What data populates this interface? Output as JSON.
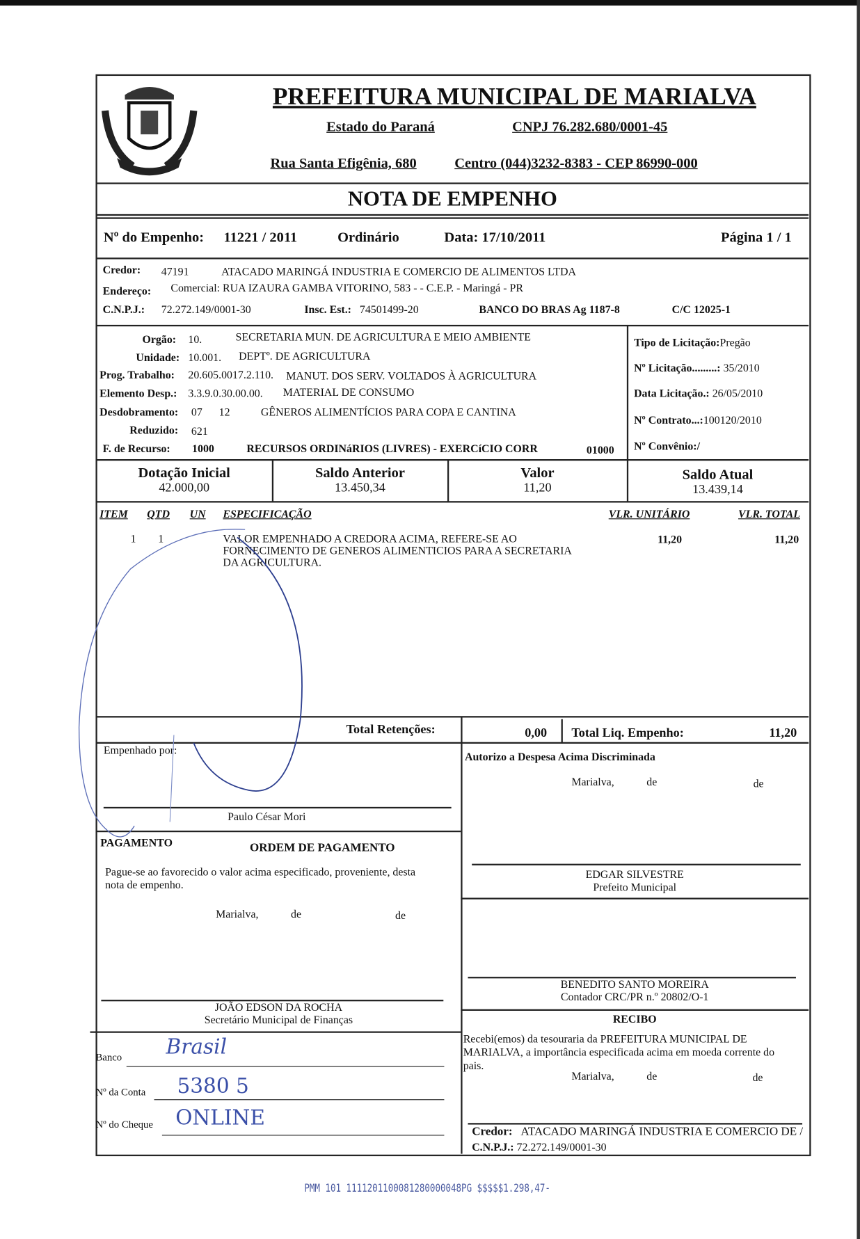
{
  "header": {
    "title": "PREFEITURA MUNICIPAL DE MARIALVA",
    "state": "Estado do Paraná",
    "cnpj": "CNPJ 76.282.680/0001-45",
    "address": "Rua Santa Efigênia, 680",
    "contact": "Centro  (044)3232-8383  -  CEP 86990-000",
    "doc_title": "NOTA  DE  EMPENHO"
  },
  "empenho": {
    "number_label": "Nº do Empenho:",
    "number": "11221 / 2011",
    "type": "Ordinário",
    "date": "Data: 17/10/2011",
    "page": "Página  1 / 1"
  },
  "credor": {
    "label": "Credor:",
    "code": "47191",
    "name": "ATACADO MARINGÁ INDUSTRIA E COMERCIO DE ALIMENTOS LTDA",
    "address_label": "Endereço:",
    "address": "Comercial: RUA IZAURA GAMBA VITORINO, 583 -  - C.E.P.  - Maringá  - PR",
    "cnpj_label": "C.N.P.J.:",
    "cnpj": "72.272.149/0001-30",
    "insc_label": "Insc. Est.:",
    "insc": "74501499-20",
    "bank": "BANCO DO BRAS  Ag   1187-8",
    "cc": "C/C    12025-1"
  },
  "budget": {
    "orgao_label": "Orgão:",
    "orgao_code": "10.",
    "orgao": "SECRETARIA MUN. DE AGRICULTURA E MEIO AMBIENTE",
    "unidade_label": "Unidade:",
    "unidade_code": "10.001.",
    "unidade": "DEPTº. DE AGRICULTURA",
    "prog_label": "Prog. Trabalho:",
    "prog_code": "20.605.0017.2.110.",
    "prog": "MANUT. DOS SERV. VOLTADOS À AGRICULTURA",
    "elem_label": "Elemento Desp.:",
    "elem_code": "3.3.9.0.30.00.00.",
    "elem": "MATERIAL DE CONSUMO",
    "desd_label": "Desdobramento:",
    "desd_code": "07      12",
    "desd": "GÊNEROS ALIMENTÍCIOS PARA COPA E CANTINA",
    "reduzido_label": "Reduzido:",
    "reduzido": "621",
    "recurso_label": "F. de Recurso:",
    "recurso_code": "1000",
    "recurso": "RECURSOS ORDINáRIOS (LIVRES) - EXERCíCIO CORR",
    "recurso_num": "01000"
  },
  "licitacao": {
    "tipo_label": "Tipo de Licitação:",
    "tipo": "Pregão",
    "num_label": "Nº Licitação.........:",
    "num": " 35/2010",
    "data_label": "Data Licitação.:",
    "data": " 26/05/2010",
    "contrato_label": "Nº Contrato...:",
    "contrato": "100120/2010",
    "convenio_label": "Nº Convênio:/"
  },
  "balances": [
    {
      "label": "Dotação Inicial",
      "value": "42.000,00"
    },
    {
      "label": "Saldo Anterior",
      "value": "13.450,34"
    },
    {
      "label": "Valor",
      "value": "11,20"
    },
    {
      "label": "Saldo Atual",
      "value": "13.439,14"
    }
  ],
  "items": {
    "headers": [
      "ITEM",
      "QTD",
      "UN",
      "ESPECIFICAÇÃO",
      "VLR. UNITÁRIO",
      "VLR. TOTAL"
    ],
    "rows": [
      {
        "item": "1",
        "qtd": "1",
        "un": "",
        "spec1": "VALOR  EMPENHADO  A  CREDORA  ACIMA,  REFERE-SE  AO",
        "spec2": "FORNECIMENTO DE GENEROS ALIMENTICIOS PARA A SECRETARIA",
        "spec3": "DA AGRICULTURA.",
        "unit": "11,20",
        "total": "11,20"
      }
    ]
  },
  "totals": {
    "ret_label": "Total Retenções:",
    "ret": "0,00",
    "liq_label": "Total Liq. Empenho:",
    "liq": "11,20"
  },
  "signatures": {
    "empenhado_label": "Empenhado por:",
    "empenhado_name": "Paulo César Mori",
    "autorizo": "Autorizo a Despesa Acima Discriminada",
    "place": "Marialva,",
    "de": "de",
    "prefeito_name": "EDGAR SILVESTRE",
    "prefeito_role": "Prefeito Municipal",
    "contador_name": "BENEDITO SANTO MOREIRA",
    "contador_role": "Contador CRC/PR n.º 20802/O-1"
  },
  "pagamento": {
    "label": "PAGAMENTO",
    "title": "ORDEM DE PAGAMENTO",
    "text1": "Pague-se ao favorecido o valor acima especificado, proveniente, desta",
    "text2": "nota de empenho.",
    "sec_name": "JOÃO EDSON DA ROCHA",
    "sec_role": "Secretário Municipal de Finanças",
    "banco_label": "Banco",
    "conta_label": "Nº da Conta",
    "cheque_label": "Nº do Cheque",
    "banco_hand": "Brasil",
    "conta_hand": "5380 5",
    "cheque_hand": "ONLINE"
  },
  "recibo": {
    "title": "RECIBO",
    "text1": "Recebi(emos)  da  tesouraria  da  PREFEITURA  MUNICIPAL  DE",
    "text2": "MARIALVA, a importância especificada acima em moeda corrente do",
    "text3": "pais.",
    "credor_label": "Credor:",
    "credor": "ATACADO MARINGÁ INDUSTRIA E COMERCIO DE /",
    "cnpj_label": "C.N.P.J.:",
    "cnpj": "72.272.149/0001-30"
  },
  "footer_code": "PMM 101 1111201100081280000048PG $$$$$1.298,47-",
  "colors": {
    "ink": "#111111",
    "pen": "#3a4fa8"
  }
}
